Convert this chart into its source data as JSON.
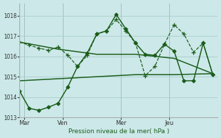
{
  "title": "Pression niveau de la mer( hPa )",
  "bg_color": "#cce8e8",
  "grid_color": "#aacccc",
  "line_color": "#1a5c1a",
  "ylim": [
    1013.0,
    1018.6
  ],
  "yticks": [
    1013,
    1014,
    1015,
    1016,
    1017,
    1018
  ],
  "xlim": [
    0,
    20.5
  ],
  "day_positions": [
    0.5,
    4.5,
    10.5,
    15.5
  ],
  "day_labels": [
    "Mar",
    "Ven",
    "Mer",
    "Jeu"
  ],
  "vline_positions": [
    0.5,
    4.5,
    10.5,
    15.5
  ],
  "line1": {
    "x": [
      0,
      4,
      8,
      12,
      16,
      20
    ],
    "y": [
      1016.7,
      1016.35,
      1016.1,
      1016.1,
      1015.9,
      1015.15
    ],
    "ls": "-",
    "lw": 1.1,
    "marker": null,
    "ms": 0
  },
  "line2": {
    "x": [
      0,
      4,
      8,
      12,
      16,
      20
    ],
    "y": [
      1014.8,
      1014.9,
      1015.0,
      1015.1,
      1015.1,
      1015.15
    ],
    "ls": "-",
    "lw": 1.1,
    "marker": null,
    "ms": 0
  },
  "line3_x": [
    0,
    1,
    2,
    3,
    4,
    5,
    6,
    7,
    8,
    9,
    10,
    11,
    12,
    13,
    14,
    15,
    16,
    17,
    18,
    19,
    20
  ],
  "line3_y": [
    1014.3,
    1013.45,
    1013.35,
    1013.5,
    1013.7,
    1014.5,
    1015.5,
    1016.15,
    1017.1,
    1017.25,
    1018.05,
    1017.35,
    1016.65,
    1016.1,
    1016.05,
    1016.6,
    1016.25,
    1014.8,
    1014.8,
    1016.65,
    1015.1
  ],
  "line3_ls": "-",
  "line3_lw": 1.1,
  "line3_marker": "D",
  "line3_ms": 2.5,
  "line4_x": [
    0,
    1,
    2,
    3,
    4,
    5,
    6,
    7,
    8,
    9,
    10,
    11,
    12,
    13,
    14,
    15,
    16,
    17,
    18,
    19,
    20
  ],
  "line4_y": [
    1016.7,
    1016.55,
    1016.4,
    1016.3,
    1016.45,
    1016.05,
    1015.5,
    1016.05,
    1017.1,
    1017.25,
    1017.8,
    1017.25,
    1016.65,
    1015.05,
    1015.5,
    1016.6,
    1017.55,
    1017.1,
    1016.2,
    1016.65,
    1015.1
  ],
  "line4_ls": "--",
  "line4_lw": 0.9,
  "line4_marker": "+",
  "line4_ms": 4.0
}
